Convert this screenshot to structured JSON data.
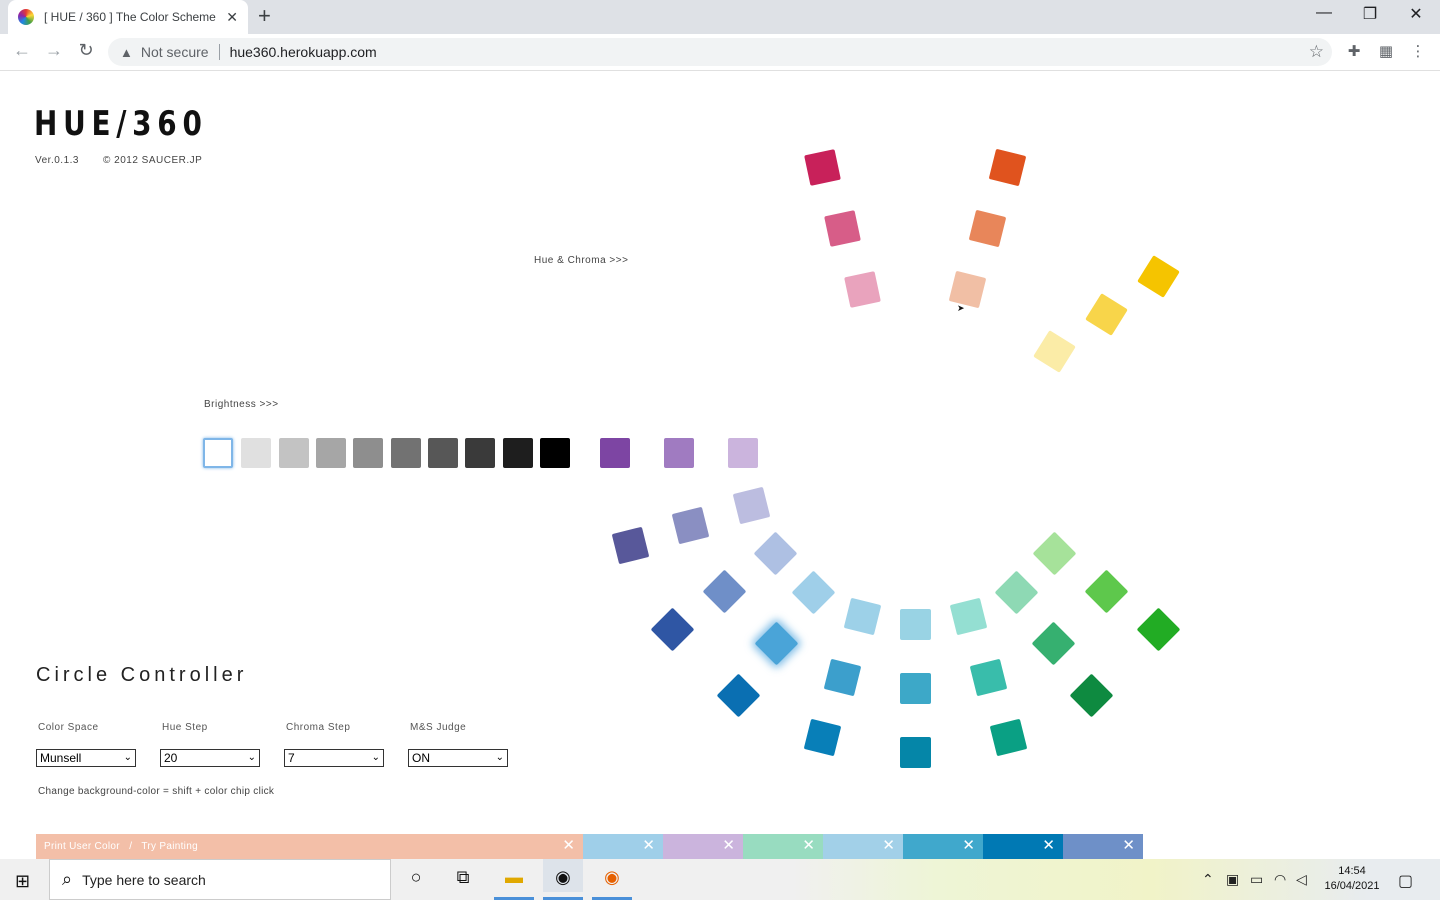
{
  "browser": {
    "tab_title": "[ HUE / 360 ] The Color Scheme /",
    "new_tab": "+",
    "tab_close": "✕",
    "not_secure": "Not secure",
    "url": "hue360.herokuapp.com",
    "win_minimize": "—",
    "win_restore": "❐",
    "win_close": "✕"
  },
  "page": {
    "logo": "HUE/360",
    "version": "Ver.0.1.3",
    "copyright": "© 2012 SAUCER.JP",
    "hue_chroma_label": "Hue & Chroma >>>",
    "brightness_label": "Brightness >>>",
    "cursor_glyph": "➤"
  },
  "controller": {
    "title": "Circle Controller",
    "color_space": {
      "label": "Color Space",
      "value": "Munsell"
    },
    "hue_step": {
      "label": "Hue Step",
      "value": "20"
    },
    "chroma_step": {
      "label": "Chroma Step",
      "value": "7"
    },
    "ms_judge": {
      "label": "M&S Judge",
      "value": "ON"
    },
    "hint": "Change background-color = shift + color chip click",
    "arrow_glyph": "⌄"
  },
  "palette": {
    "print_user_color": "Print User Color",
    "separator": "/",
    "try_painting": "Try Painting",
    "close_glyph": "✕",
    "colors": [
      "#f3bfa8",
      "#9fcfe9",
      "#cbb4dd",
      "#98dcc0",
      "#a2d0e8",
      "#40a8cc",
      "#0079b4",
      "#6e90c8"
    ]
  },
  "gray_chips": [
    "#ffffff",
    "#e0e0e0",
    "#c3c3c3",
    "#a6a6a6",
    "#8e8e8e",
    "#727272",
    "#575757",
    "#3a3a3a",
    "#1e1e1e",
    "#000000"
  ],
  "purple_chips": [
    "#7d45a3",
    "#a07bc1",
    "#cbb4dd"
  ],
  "taskbar": {
    "search_placeholder": "Type here to search",
    "time": "14:54",
    "date": "16/04/2021"
  }
}
